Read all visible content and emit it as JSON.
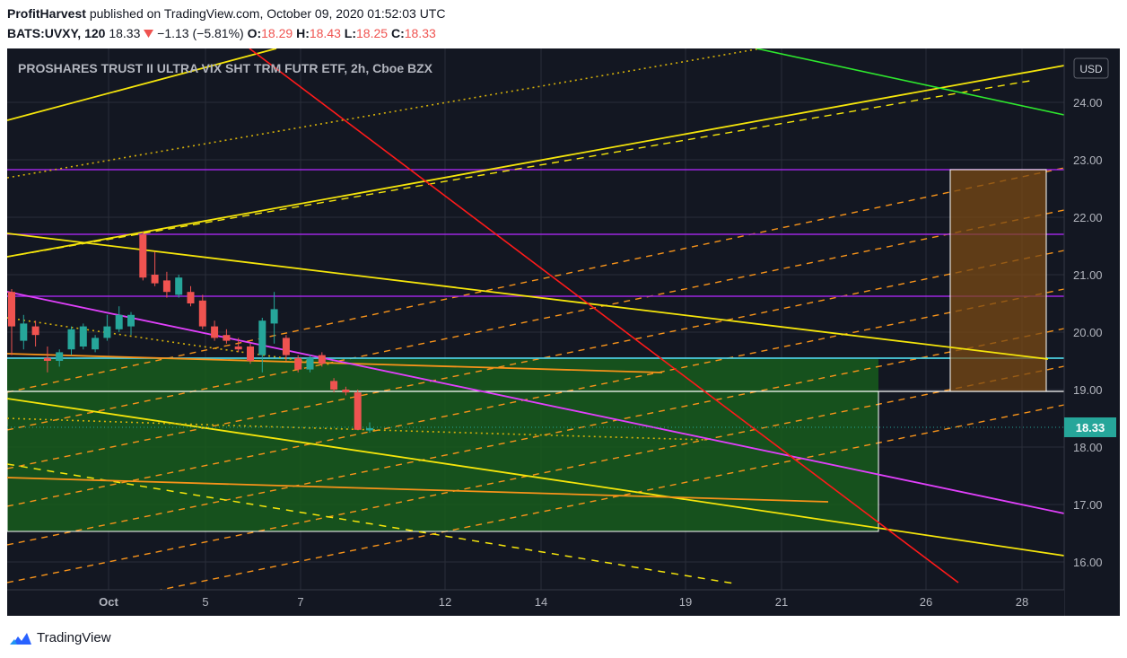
{
  "header": {
    "publisher": "ProfitHarvest",
    "published_text": "published on TradingView.com, October 09, 2020 01:52:03 UTC",
    "symbol": "BATS:UVXY, 120",
    "last": "18.33",
    "change": "−1.13 (−5.81%)",
    "o_label": "O:",
    "o_value": "18.29",
    "h_label": "H:",
    "h_value": "18.43",
    "l_label": "L:",
    "l_value": "18.25",
    "c_label": "C:",
    "c_value": "18.33"
  },
  "footer": {
    "brand": "TradingView"
  },
  "colors": {
    "background": "#131722",
    "grid": "#2a2e39",
    "up": "#26a69a",
    "down": "#ef5350",
    "price_tag": "#26a69a"
  },
  "icons": {
    "change_arrow": "triangle-down-icon",
    "logo": "tradingview-cloud-icon"
  },
  "chart_data": {
    "type": "candlestick",
    "title": "PROSHARES TRUST II ULTRA VIX SHT TRM FUTR ETF, 2h, Cboe BZX",
    "currency": "USD",
    "last_price": "18.33",
    "ylim": [
      15.6,
      24.6
    ],
    "y_ticks": [
      "24.00",
      "23.00",
      "22.00",
      "21.00",
      "20.00",
      "19.00",
      "18.00",
      "17.00",
      "16.00"
    ],
    "x_ticks": [
      "Oct",
      "5",
      "7",
      "12",
      "14",
      "19",
      "21",
      "26",
      "28"
    ],
    "grid": true,
    "candles": [
      {
        "o": 20.7,
        "h": 20.75,
        "l": 19.6,
        "c": 20.1
      },
      {
        "o": 19.85,
        "h": 20.3,
        "l": 19.7,
        "c": 20.15
      },
      {
        "o": 20.1,
        "h": 20.2,
        "l": 19.75,
        "c": 19.95
      },
      {
        "o": 19.55,
        "h": 19.75,
        "l": 19.3,
        "c": 19.5
      },
      {
        "o": 19.5,
        "h": 19.7,
        "l": 19.4,
        "c": 19.65
      },
      {
        "o": 19.7,
        "h": 20.1,
        "l": 19.6,
        "c": 20.05
      },
      {
        "o": 19.75,
        "h": 20.15,
        "l": 19.7,
        "c": 20.1
      },
      {
        "o": 19.7,
        "h": 19.95,
        "l": 19.65,
        "c": 19.9
      },
      {
        "o": 19.9,
        "h": 20.3,
        "l": 19.85,
        "c": 20.1
      },
      {
        "o": 20.05,
        "h": 20.45,
        "l": 20.0,
        "c": 20.3
      },
      {
        "o": 20.1,
        "h": 20.35,
        "l": 19.95,
        "c": 20.3
      },
      {
        "o": 21.7,
        "h": 21.75,
        "l": 20.9,
        "c": 20.95
      },
      {
        "o": 21.0,
        "h": 21.4,
        "l": 20.8,
        "c": 20.85
      },
      {
        "o": 20.9,
        "h": 21.05,
        "l": 20.6,
        "c": 20.7
      },
      {
        "o": 20.65,
        "h": 21.0,
        "l": 20.6,
        "c": 20.95
      },
      {
        "o": 20.7,
        "h": 20.8,
        "l": 20.45,
        "c": 20.5
      },
      {
        "o": 20.55,
        "h": 20.65,
        "l": 20.05,
        "c": 20.1
      },
      {
        "o": 20.1,
        "h": 20.2,
        "l": 19.85,
        "c": 19.9
      },
      {
        "o": 19.95,
        "h": 20.05,
        "l": 19.8,
        "c": 19.85
      },
      {
        "o": 19.75,
        "h": 19.9,
        "l": 19.65,
        "c": 19.7
      },
      {
        "o": 19.75,
        "h": 19.8,
        "l": 19.45,
        "c": 19.5
      },
      {
        "o": 19.6,
        "h": 20.25,
        "l": 19.3,
        "c": 20.2
      },
      {
        "o": 20.15,
        "h": 20.7,
        "l": 19.8,
        "c": 20.4
      },
      {
        "o": 19.9,
        "h": 19.95,
        "l": 19.5,
        "c": 19.6
      },
      {
        "o": 19.55,
        "h": 19.6,
        "l": 19.3,
        "c": 19.35
      },
      {
        "o": 19.35,
        "h": 19.6,
        "l": 19.3,
        "c": 19.55
      },
      {
        "o": 19.6,
        "h": 19.65,
        "l": 19.4,
        "c": 19.45
      },
      {
        "o": 19.15,
        "h": 19.2,
        "l": 18.95,
        "c": 19.0
      },
      {
        "o": 19.0,
        "h": 19.05,
        "l": 18.9,
        "c": 18.95
      },
      {
        "o": 18.95,
        "h": 19.0,
        "l": 18.3,
        "c": 18.3
      },
      {
        "o": 18.29,
        "h": 18.43,
        "l": 18.25,
        "c": 18.33
      }
    ]
  }
}
